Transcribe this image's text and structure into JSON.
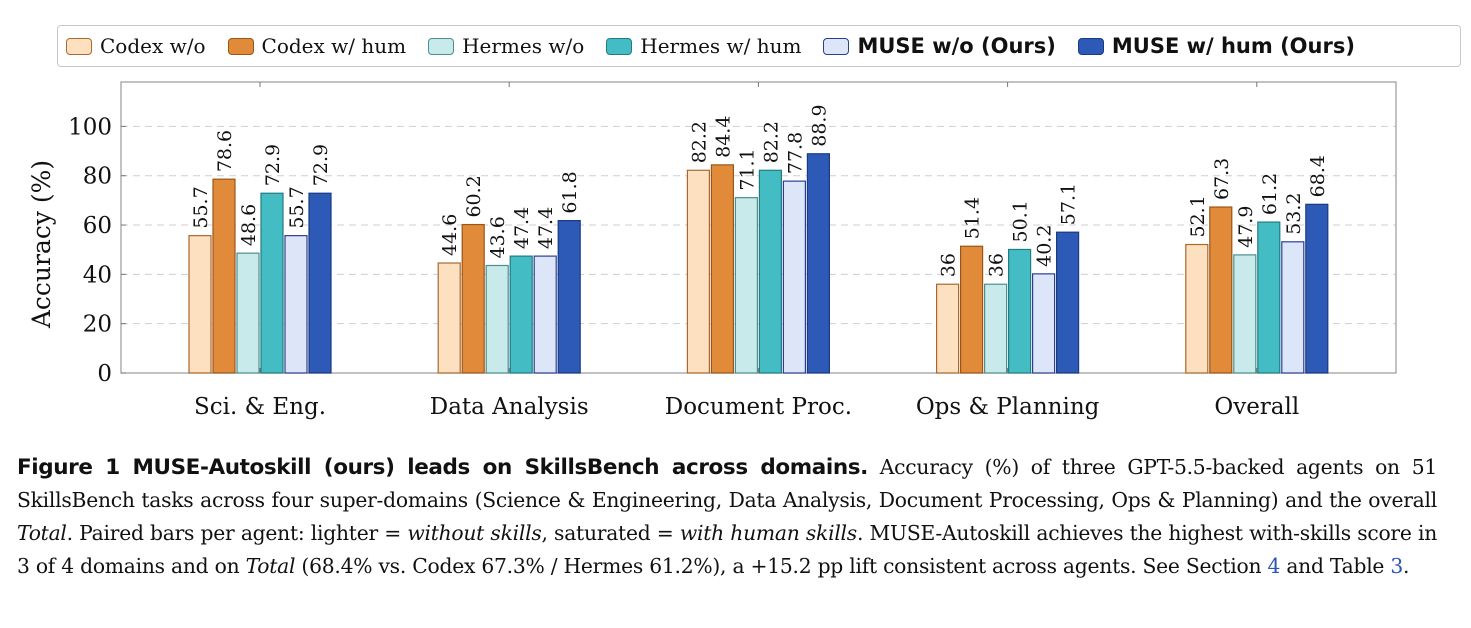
{
  "chart_data": {
    "type": "bar",
    "ylabel": "Accuracy (%)",
    "xlabel": "",
    "ylim": [
      0,
      118
    ],
    "yticks": [
      0,
      20,
      40,
      60,
      80,
      100
    ],
    "grid": "horizontal dashed",
    "legend_position": "top",
    "categories": [
      "Sci. & Eng.",
      "Data Analysis",
      "Document Proc.",
      "Ops & Planning",
      "Overall"
    ],
    "series": [
      {
        "name": "Codex w/o",
        "fill": "#fde0bf",
        "stroke": "#a9692e",
        "values": [
          55.7,
          44.6,
          82.2,
          36,
          52.1
        ],
        "labels": [
          "55.7",
          "44.6",
          "82.2",
          "36",
          "52.1"
        ]
      },
      {
        "name": "Codex w/ hum",
        "fill": "#e08a3a",
        "stroke": "#9a5619",
        "values": [
          78.6,
          60.2,
          84.4,
          51.4,
          67.3
        ],
        "labels": [
          "78.6",
          "60.2",
          "84.4",
          "51.4",
          "67.3"
        ]
      },
      {
        "name": "Hermes w/o",
        "fill": "#c9eaea",
        "stroke": "#4b8f90",
        "values": [
          48.6,
          43.6,
          71.1,
          36,
          47.9
        ],
        "labels": [
          "48.6",
          "43.6",
          "71.1",
          "36",
          "47.9"
        ]
      },
      {
        "name": "Hermes w/ hum",
        "fill": "#44bcc4",
        "stroke": "#227c82",
        "values": [
          72.9,
          47.4,
          82.2,
          50.1,
          61.2
        ],
        "labels": [
          "72.9",
          "47.4",
          "82.2",
          "50.1",
          "61.2"
        ]
      },
      {
        "name": "MUSE w/o (Ours)",
        "fill": "#dde6f8",
        "stroke": "#2b3f8f",
        "values": [
          55.7,
          47.4,
          77.8,
          40.2,
          53.2
        ],
        "labels": [
          "55.7",
          "47.4",
          "77.8",
          "40.2",
          "53.2"
        ]
      },
      {
        "name": "MUSE w/ hum (Ours)",
        "fill": "#2d5ab6",
        "stroke": "#1c3a80",
        "values": [
          72.9,
          61.8,
          88.9,
          57.1,
          68.4
        ],
        "labels": [
          "72.9",
          "61.8",
          "88.9",
          "57.1",
          "68.4"
        ]
      }
    ]
  },
  "caption": {
    "head": "Figure 1  MUSE-Autoskill (ours) leads on SkillsBench across domains.",
    "p1": " Accuracy (%) of three GPT-5.5-backed agents on 51 SkillsBench tasks across four super-domains (Science & Engineering, Data Analysis, Document Processing, Ops & Planning) and the overall ",
    "total1": "Total",
    "p2": ". Paired bars per agent: lighter = ",
    "without": "without skills",
    "p3": ", saturated = ",
    "with_human": "with human skills",
    "p4": ". MUSE-Autoskill achieves the highest with-skills score in 3 of 4 domains and on ",
    "total2": "Total",
    "p5": " (68.4% vs. Codex 67.3% / Hermes 61.2%), a +15.2 pp lift consistent across agents. See Section ",
    "ref_section": "4",
    "p6": " and Table ",
    "ref_table": "3",
    "p7": "."
  }
}
